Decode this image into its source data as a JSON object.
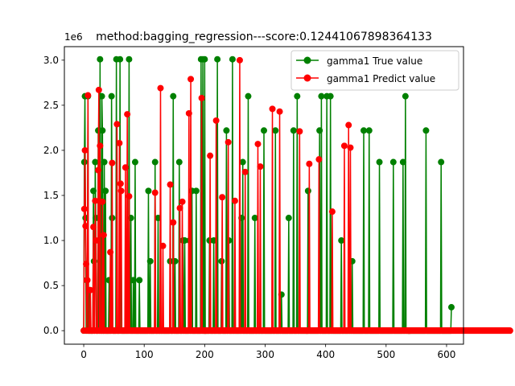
{
  "chart_data": {
    "type": "line",
    "title": "method:bagging_regression---score:0.12441067898364133",
    "y_offset_label": "1e6",
    "xlabel": "",
    "ylabel": "",
    "xlim": [
      -32,
      628
    ],
    "ylim": [
      -150000,
      3150000
    ],
    "x_ticks": [
      0,
      100,
      200,
      300,
      400,
      500,
      600
    ],
    "x_tick_labels": [
      "0",
      "100",
      "200",
      "300",
      "400",
      "500",
      "600"
    ],
    "y_ticks": [
      0,
      500000,
      1000000,
      1500000,
      2000000,
      2500000,
      3000000
    ],
    "y_tick_labels": [
      "0.0",
      "0.5",
      "1.0",
      "1.5",
      "2.0",
      "2.5",
      "3.0"
    ],
    "grid": false,
    "legend_position": "top-right",
    "series": [
      {
        "name": "gamma1 True value",
        "color": "#008000",
        "values": [
          0,
          1870000,
          2600000,
          1250000,
          0,
          560000,
          0,
          2600000,
          0,
          0,
          450000,
          0,
          0,
          0,
          0,
          0,
          1550000,
          770000,
          0,
          1870000,
          1250000,
          0,
          0,
          0,
          2220000,
          0,
          0,
          3010000,
          0,
          0,
          2600000,
          2220000,
          0,
          0,
          1870000,
          0,
          1550000,
          0,
          0,
          0,
          0,
          0,
          560000,
          0,
          0,
          0,
          2600000,
          1250000,
          0,
          0,
          0,
          0,
          0,
          0,
          3010000,
          0,
          0,
          0,
          0,
          0,
          3010000,
          0,
          0,
          0,
          0,
          0,
          0,
          0,
          0,
          0,
          0,
          0,
          0,
          0,
          0,
          3010000,
          0,
          0,
          1250000,
          0,
          0,
          0,
          560000,
          0,
          0,
          1870000,
          0,
          0,
          0,
          0,
          0,
          0,
          560000,
          0,
          0,
          0,
          0,
          0,
          0,
          0,
          0,
          0,
          0,
          0,
          0,
          0,
          0,
          1550000,
          0,
          0,
          770000,
          0,
          0,
          0,
          0,
          0,
          0,
          0,
          1870000,
          0,
          0,
          0,
          0,
          1250000,
          0,
          0,
          0,
          0,
          0,
          0,
          0,
          0,
          0,
          0,
          0,
          0,
          0,
          0,
          0,
          0,
          0,
          0,
          0,
          770000,
          0,
          0,
          0,
          0,
          2600000,
          0,
          0,
          770000,
          0,
          0,
          0,
          0,
          0,
          0,
          1870000,
          0,
          0,
          0,
          0,
          0,
          1000000,
          0,
          0,
          1000000,
          0,
          0,
          0,
          0,
          0,
          0,
          0,
          1000000,
          0,
          0,
          0,
          1550000,
          0,
          0,
          0,
          0,
          0,
          0,
          1550000,
          0,
          0,
          0,
          0,
          0,
          0,
          0,
          3010000,
          0,
          0,
          3010000,
          0,
          0,
          3010000,
          0,
          0,
          0,
          0,
          0,
          0,
          0,
          1000000,
          0,
          0,
          0,
          0,
          0,
          0,
          1000000,
          0,
          0,
          0,
          0,
          0,
          3010000,
          0,
          0,
          0,
          0,
          0,
          0,
          770000,
          0,
          0,
          0,
          0,
          0,
          0,
          0,
          2220000,
          0,
          0,
          0,
          1000000,
          0,
          0,
          0,
          0,
          0,
          3010000,
          0,
          0,
          0,
          0,
          0,
          0,
          0,
          0,
          0,
          0,
          0,
          0,
          0,
          0,
          1250000,
          0,
          1870000,
          0,
          0,
          0,
          0,
          0,
          0,
          0,
          0,
          2600000,
          0,
          0,
          0,
          0,
          0,
          0,
          0,
          0,
          0,
          0,
          1250000,
          0,
          0,
          0,
          0,
          0,
          0,
          0,
          0,
          0,
          0,
          0,
          0,
          0,
          0,
          2220000,
          0,
          0,
          0,
          0,
          0,
          0,
          0,
          0,
          0,
          0,
          0,
          0,
          0,
          0,
          0,
          0,
          0,
          0,
          2220000,
          0,
          0,
          0,
          0,
          0,
          0,
          0,
          0,
          0,
          400000,
          0,
          0,
          0,
          0,
          0,
          0,
          0,
          0,
          0,
          0,
          0,
          1250000,
          0,
          0,
          0,
          0,
          0,
          0,
          0,
          2220000,
          0,
          0,
          0,
          0,
          0,
          2600000,
          0,
          0,
          0,
          0,
          0,
          0,
          0,
          0,
          0,
          0,
          0,
          0,
          0,
          0,
          0,
          0,
          0,
          1550000,
          0,
          0,
          0,
          0,
          0,
          0,
          0,
          0,
          0,
          0,
          0,
          0,
          0,
          0,
          0,
          0,
          0,
          0,
          2220000,
          0,
          0,
          2600000,
          0,
          0,
          0,
          0,
          0,
          0,
          0,
          0,
          2600000,
          0,
          0,
          0,
          0,
          0,
          2600000,
          0,
          0,
          0,
          0,
          0,
          0,
          0,
          0,
          0,
          0,
          0,
          0,
          0,
          0,
          0,
          0,
          0,
          1000000,
          0,
          0,
          0,
          0,
          0,
          0,
          0,
          0,
          0,
          0,
          0,
          0,
          0,
          0,
          0,
          0,
          0,
          770000,
          0,
          0,
          0,
          0,
          0,
          0,
          0,
          0,
          0,
          0,
          0,
          0,
          0,
          0,
          0,
          0,
          0,
          0,
          2220000,
          0,
          0,
          0,
          0,
          0,
          0,
          0,
          0,
          2220000,
          0,
          0,
          0,
          0,
          0,
          0,
          0,
          0,
          0,
          0,
          0,
          0,
          0,
          0,
          0,
          0,
          1870000,
          0,
          0,
          0,
          0,
          0,
          0,
          0,
          0,
          0,
          0,
          0,
          0,
          0,
          0,
          0,
          0,
          0,
          0,
          0,
          0,
          0,
          0,
          1870000,
          0,
          0,
          0,
          0,
          0,
          0,
          0,
          0,
          0,
          0,
          0,
          0,
          0,
          0,
          0,
          1870000,
          0,
          0,
          0,
          2600000,
          0,
          0,
          0,
          0,
          0,
          0,
          0,
          0,
          0,
          0,
          0,
          0,
          0,
          0,
          0,
          0,
          0,
          0,
          0,
          0,
          0,
          0,
          0,
          0,
          0,
          0,
          0,
          0,
          0,
          0,
          0,
          0,
          0,
          2220000,
          0,
          0,
          0,
          0,
          0,
          0,
          0,
          0,
          0,
          0,
          0,
          0,
          0,
          0,
          0,
          0,
          0,
          0,
          0,
          0,
          0,
          0,
          0,
          0,
          1870000,
          0,
          0,
          0,
          0,
          0,
          0,
          0,
          0,
          0,
          0,
          0,
          0,
          0,
          0,
          0,
          0,
          260000
        ]
      },
      {
        "name": "gamma1 Predict value",
        "color": "#ff0000",
        "values": [
          0,
          1350000,
          2000000,
          1160000,
          740000,
          0,
          560000,
          2610000,
          0,
          0,
          0,
          450000,
          0,
          0,
          0,
          0,
          1150000,
          0,
          0,
          1440000,
          1000000,
          0,
          0,
          0,
          1780000,
          2670000,
          0,
          2050000,
          0,
          0,
          0,
          1430000,
          0,
          1060000,
          0,
          0,
          0,
          0,
          0,
          0,
          0,
          0,
          0,
          0,
          870000,
          0,
          0,
          1860000,
          0,
          0,
          0,
          0,
          0,
          0,
          0,
          2290000,
          0,
          0,
          0,
          2080000,
          0,
          1630000,
          1550000,
          0,
          0,
          0,
          0,
          0,
          0,
          1810000,
          0,
          0,
          2400000,
          0,
          0,
          1490000,
          0,
          0,
          0,
          0,
          0,
          0,
          0,
          0,
          0,
          0,
          0,
          0,
          0,
          0,
          0,
          0,
          0,
          0,
          0,
          0,
          0,
          0,
          0,
          0,
          0,
          0,
          0,
          0,
          0,
          0,
          0,
          0,
          0,
          0,
          0,
          0,
          0,
          0,
          0,
          0,
          0,
          0,
          1530000,
          0,
          0,
          0,
          0,
          0,
          0,
          0,
          0,
          2690000,
          0,
          0,
          0,
          940000,
          0,
          0,
          0,
          0,
          0,
          0,
          0,
          0,
          0,
          0,
          0,
          1620000,
          0,
          0,
          0,
          0,
          1200000,
          0,
          0,
          0,
          0,
          0,
          0,
          0,
          0,
          0,
          0,
          1360000,
          0,
          0,
          0,
          1430000,
          0,
          0,
          0,
          0,
          0,
          0,
          0,
          0,
          0,
          0,
          2410000,
          0,
          0,
          2790000,
          0,
          0,
          0,
          0,
          0,
          0,
          0,
          0,
          0,
          0,
          0,
          0,
          0,
          0,
          0,
          0,
          0,
          2580000,
          0,
          0,
          0,
          0,
          0,
          0,
          0,
          0,
          0,
          0,
          0,
          0,
          0,
          1940000,
          0,
          0,
          0,
          0,
          0,
          0,
          0,
          0,
          0,
          2330000,
          0,
          0,
          0,
          0,
          0,
          0,
          0,
          0,
          0,
          1480000,
          0,
          0,
          0,
          0,
          0,
          0,
          0,
          0,
          0,
          2090000,
          0,
          0,
          0,
          0,
          0,
          0,
          0,
          0,
          0,
          0,
          1440000,
          0,
          0,
          0,
          0,
          0,
          0,
          0,
          3000000,
          0,
          0,
          0,
          0,
          0,
          0,
          0,
          0,
          1760000,
          0,
          0,
          0,
          0,
          0,
          0,
          0,
          0,
          0,
          0,
          0,
          0,
          0,
          0,
          0,
          0,
          0,
          0,
          0,
          0,
          2070000,
          0,
          0,
          0,
          1820000,
          0,
          0,
          0,
          0,
          0,
          0,
          0,
          0,
          0,
          0,
          0,
          0,
          0,
          0,
          0,
          0,
          0,
          0,
          0,
          2460000,
          0,
          0,
          0,
          0,
          0,
          0,
          0,
          0,
          0,
          0,
          0,
          2430000,
          0,
          0,
          0,
          0,
          0,
          0,
          0,
          0,
          0,
          0,
          0,
          0,
          0,
          0,
          0,
          0,
          0,
          0,
          0,
          0,
          0,
          0,
          0,
          0,
          0,
          0,
          0,
          0,
          0,
          0,
          0,
          0,
          2210000,
          0,
          0,
          0,
          0,
          0,
          0,
          0,
          0,
          0,
          0,
          0,
          0,
          0,
          0,
          0,
          1850000,
          0,
          0,
          0,
          0,
          0,
          0,
          0,
          0,
          0,
          0,
          0,
          0,
          0,
          0,
          0,
          1900000,
          0,
          0,
          0,
          0,
          0,
          0,
          0,
          0,
          0,
          0,
          0,
          0,
          0,
          0,
          0,
          0,
          0,
          0,
          0,
          0,
          0,
          1320000,
          0,
          0,
          0,
          0,
          0,
          0,
          0,
          0,
          0,
          0,
          0,
          0,
          0,
          0,
          0,
          0,
          0,
          0,
          0,
          2050000,
          0,
          0,
          0,
          0,
          0,
          0,
          2280000,
          0,
          0,
          2030000,
          0,
          0,
          0,
          0,
          0,
          0,
          0,
          0,
          0,
          0,
          0,
          0,
          0,
          0,
          0,
          0,
          0,
          0,
          0,
          0,
          0,
          0,
          0,
          0,
          0,
          0,
          0,
          0,
          0,
          0,
          0,
          0,
          0,
          0,
          0,
          0,
          0,
          0,
          0,
          0,
          0,
          0,
          0,
          0,
          0,
          0,
          0,
          0,
          0,
          0,
          0,
          0,
          0,
          0,
          0,
          0,
          0,
          0,
          0,
          0,
          0,
          0,
          0,
          0,
          0,
          0,
          0,
          0,
          0,
          0,
          0,
          0,
          0,
          0,
          0,
          0,
          0,
          0,
          0,
          0,
          0,
          0,
          0,
          0,
          0,
          0,
          0,
          0,
          0,
          0,
          0,
          0,
          0,
          0,
          0,
          0,
          0,
          0,
          0,
          0,
          0,
          0,
          0,
          0,
          0,
          0,
          0,
          0,
          0,
          0,
          0,
          0,
          0,
          0,
          0,
          0,
          0,
          0,
          0,
          0,
          0,
          0,
          0,
          0,
          0,
          0,
          0,
          0,
          0,
          0,
          0,
          0,
          0,
          0,
          0,
          0,
          0,
          0,
          0,
          0,
          0,
          0,
          0,
          0,
          0,
          0,
          0,
          0,
          0,
          0,
          0,
          0,
          0,
          0,
          0,
          0,
          0,
          0,
          0,
          0,
          0,
          0,
          0,
          0,
          0,
          0,
          0,
          0,
          0,
          0,
          0,
          0,
          0,
          0,
          0,
          0,
          0,
          0,
          0,
          0,
          0,
          0,
          0,
          0,
          0,
          0,
          0,
          0,
          0,
          0,
          0,
          0,
          0,
          0,
          0,
          0,
          0,
          0,
          0,
          0,
          0,
          0,
          0,
          0,
          0,
          0,
          0,
          0,
          0,
          0,
          0,
          0,
          0,
          0,
          0,
          0,
          0,
          0,
          0,
          0,
          0,
          0,
          0,
          0,
          0,
          0,
          0,
          0,
          0,
          0,
          0,
          0,
          0,
          0,
          0,
          0,
          0,
          0,
          0,
          0,
          0,
          0,
          0,
          0,
          0,
          0,
          0,
          0,
          0,
          0,
          0,
          0,
          0,
          0,
          0,
          0,
          0,
          0,
          0,
          0,
          0,
          0,
          0,
          0
        ]
      }
    ]
  }
}
